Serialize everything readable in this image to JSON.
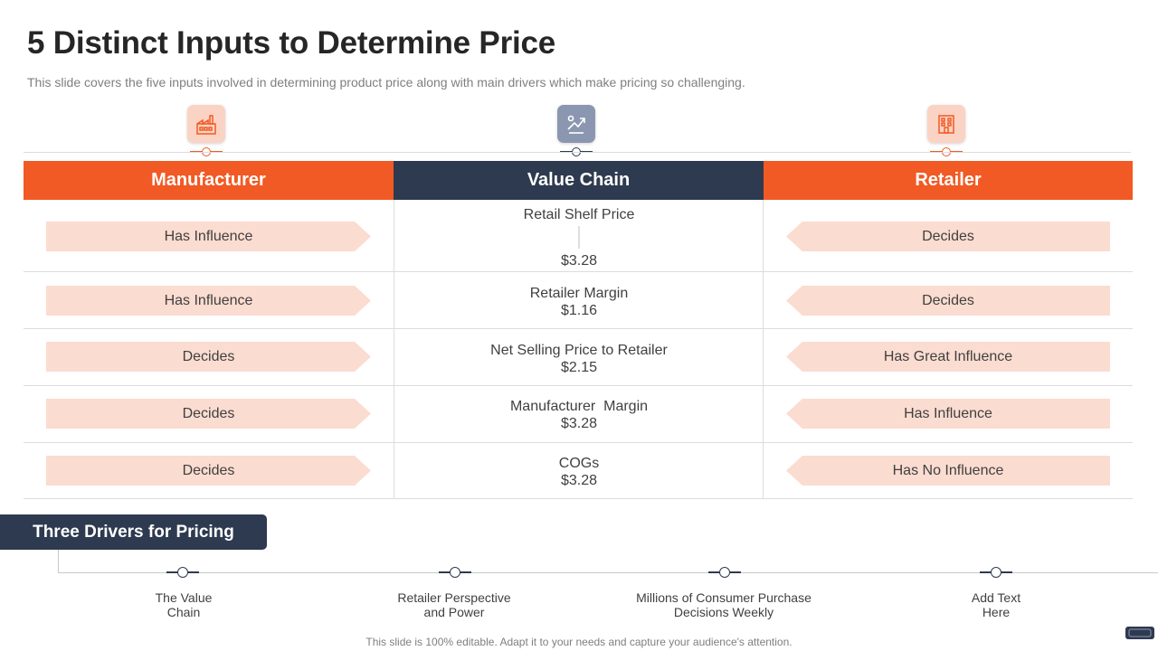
{
  "title": "5 Distinct Inputs to Determine Price",
  "subtitle": "This slide covers the five inputs involved in determining product price along with main drivers which make pricing so challenging.",
  "columns": {
    "manufacturer": "Manufacturer",
    "value_chain": "Value Chain",
    "retailer": "Retailer"
  },
  "icons": {
    "manufacturer": "factory-icon",
    "value_chain": "value-chain-icon",
    "retailer": "store-building-icon"
  },
  "colors": {
    "accent": "#f15a24",
    "navy": "#2e3a4f",
    "arrow_fill": "#fbdcd0"
  },
  "rows": [
    {
      "manufacturer": "Has Influence",
      "value_label": "Retail Shelf Price",
      "value_amount": "$3.28",
      "retailer": "Decides"
    },
    {
      "manufacturer": "Has Influence",
      "value_label": "Retailer Margin",
      "value_amount": "$1.16",
      "retailer": "Decides"
    },
    {
      "manufacturer": "Decides",
      "value_label": "Net Selling Price to Retailer",
      "value_amount": "$2.15",
      "retailer": "Has Great Influence"
    },
    {
      "manufacturer": "Decides",
      "value_label": "Manufacturer  Margin",
      "value_amount": "$3.28",
      "retailer": "Has Influence"
    },
    {
      "manufacturer": "Decides",
      "value_label": "COGs",
      "value_amount": "$3.28",
      "retailer": "Has No Influence"
    }
  ],
  "drivers": {
    "heading": "Three Drivers for Pricing",
    "items": [
      "The Value\nChain",
      "Retailer Perspective\nand Power",
      "Millions of Consumer Purchase\nDecisions Weekly",
      "Add Text\nHere"
    ]
  },
  "footer": "This slide is 100% editable. Adapt it to your needs and capture your audience's attention."
}
